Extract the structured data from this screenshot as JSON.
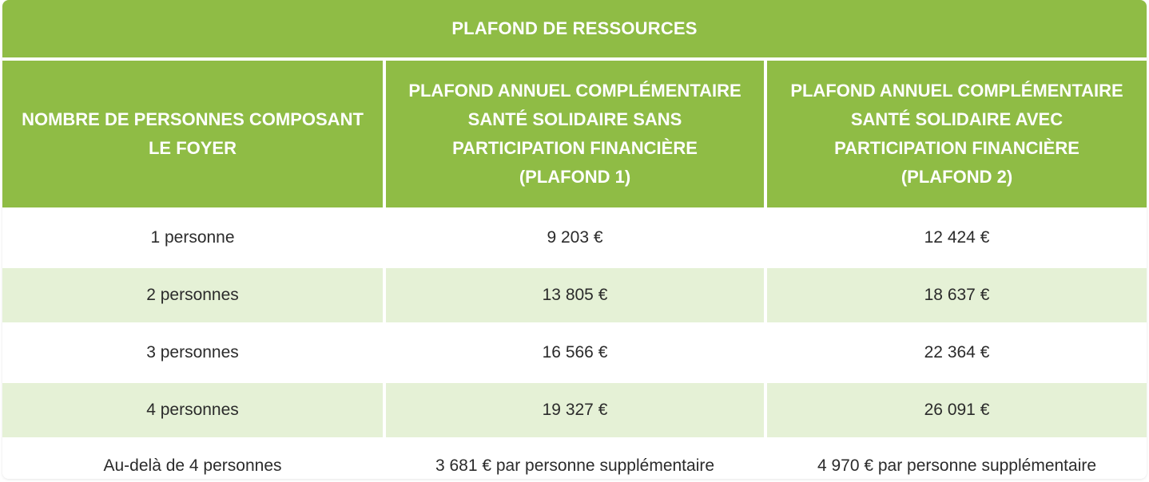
{
  "table": {
    "title": "PLAFOND DE RESSOURCES",
    "headers": [
      {
        "lines": [
          "NOMBRE DE PERSONNES COMPOSANT",
          "LE FOYER"
        ]
      },
      {
        "lines": [
          "PLAFOND ANNUEL COMPLÉMENTAIRE",
          "SANTÉ SOLIDAIRE SANS",
          "PARTICIPATION FINANCIÈRE",
          "(PLAFOND 1)"
        ]
      },
      {
        "lines": [
          "PLAFOND ANNUEL COMPLÉMENTAIRE",
          "SANTÉ SOLIDAIRE AVEC",
          "PARTICIPATION FINANCIÈRE",
          "(PLAFOND 2)"
        ]
      }
    ],
    "rows": [
      {
        "persons": "1 personne",
        "plafond1": "9 203 €",
        "plafond2": "12 424 €"
      },
      {
        "persons": "2 personnes",
        "plafond1": "13 805 €",
        "plafond2": "18 637 €"
      },
      {
        "persons": "3 personnes",
        "plafond1": "16 566 €",
        "plafond2": "22 364 €"
      },
      {
        "persons": "4 personnes",
        "plafond1": "19 327 €",
        "plafond2": "26 091 €"
      },
      {
        "persons": "Au-delà de 4 personnes",
        "plafond1": "3 681 € par personne supplémentaire",
        "plafond2": "4 970 € par personne supplémentaire"
      }
    ]
  },
  "colors": {
    "header_green": "#8fbc45",
    "row_alt_green": "#e5f1d6",
    "text_dark": "#2b2b2b",
    "header_text": "#ffffff"
  }
}
